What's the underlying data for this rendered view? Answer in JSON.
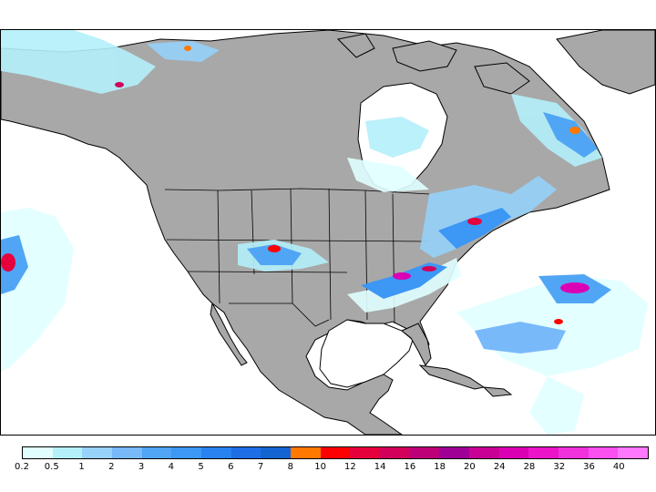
{
  "map": {
    "land_color": "#a8a8a8",
    "ocean_color": "#ffffff",
    "coastline_color": "#000000",
    "region_shown": "North America"
  },
  "legend": {
    "levels": [
      "0.2",
      "0.5",
      "1",
      "2",
      "3",
      "4",
      "5",
      "6",
      "7",
      "8",
      "10",
      "12",
      "14",
      "16",
      "18",
      "20",
      "24",
      "28",
      "32",
      "36",
      "40"
    ],
    "colors": [
      "#e1ffff",
      "#b4f0fa",
      "#96d2fa",
      "#78b9fa",
      "#50a5f5",
      "#3c97f5",
      "#2882f0",
      "#1e6ee6",
      "#1464d2",
      "#ff7800",
      "#ff0000",
      "#e6003c",
      "#d2005a",
      "#be0078",
      "#a00096",
      "#c80096",
      "#dc00b4",
      "#eb14c8",
      "#f032dc",
      "#fa50f0",
      "#ff78ff"
    ]
  }
}
